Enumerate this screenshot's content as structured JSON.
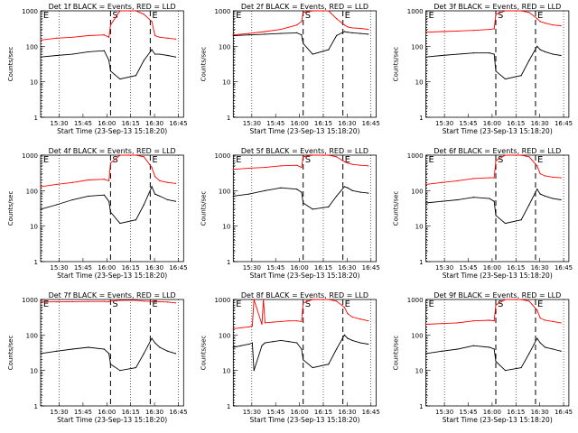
{
  "panels_meta": {
    "xlabel": "Start Time (23-Sep-13 15:18:20)",
    "ylabel": "Counts/sec",
    "xticks": [
      "15:30",
      "15:45",
      "16:00",
      "16:15",
      "16:30",
      "16:45"
    ],
    "yticks": [
      "1",
      "10",
      "100",
      "1000"
    ],
    "marker_labels": [
      "E",
      "S",
      "E"
    ]
  },
  "colors": {
    "events": "#000000",
    "lld": "#ff0000",
    "axes": "#000000"
  },
  "chart_data": [
    {
      "type": "line",
      "title": "Det 1f BLACK = Events, RED = LLD",
      "x_minutes_from_start": [
        0,
        10,
        20,
        30,
        40,
        43,
        44,
        50,
        60,
        65,
        70,
        72,
        75,
        80,
        85
      ],
      "ylog": true,
      "ylim": [
        1,
        1000
      ],
      "series": [
        {
          "name": "Events",
          "values": [
            50,
            55,
            60,
            70,
            75,
            40,
            20,
            12,
            15,
            40,
            80,
            60,
            60,
            55,
            50
          ]
        },
        {
          "name": "LLD",
          "values": [
            150,
            170,
            180,
            200,
            210,
            180,
            400,
            1000,
            1000,
            800,
            500,
            200,
            180,
            170,
            160
          ]
        }
      ]
    },
    {
      "type": "line",
      "title": "Det 2f BLACK = Events, RED = LLD",
      "x_minutes_from_start": [
        0,
        10,
        20,
        30,
        40,
        43,
        44,
        50,
        60,
        65,
        70,
        72,
        75,
        80,
        85
      ],
      "ylog": true,
      "ylim": [
        1,
        1000
      ],
      "series": [
        {
          "name": "Events",
          "values": [
            200,
            210,
            220,
            230,
            240,
            210,
            120,
            60,
            80,
            200,
            260,
            250,
            240,
            230,
            220
          ]
        },
        {
          "name": "LLD",
          "values": [
            210,
            230,
            260,
            300,
            400,
            500,
            900,
            1000,
            1000,
            600,
            400,
            350,
            330,
            320,
            300
          ]
        }
      ]
    },
    {
      "type": "line",
      "title": "Det 3f BLACK = Events, RED = LLD",
      "x_minutes_from_start": [
        0,
        10,
        20,
        30,
        40,
        43,
        44,
        50,
        60,
        65,
        70,
        72,
        75,
        80,
        85
      ],
      "ylog": true,
      "ylim": [
        1,
        1000
      ],
      "series": [
        {
          "name": "Events",
          "values": [
            50,
            55,
            60,
            65,
            65,
            60,
            20,
            12,
            15,
            40,
            100,
            80,
            70,
            60,
            55
          ]
        },
        {
          "name": "LLD",
          "values": [
            250,
            260,
            270,
            280,
            300,
            310,
            800,
            1000,
            1000,
            900,
            600,
            500,
            450,
            400,
            380
          ]
        }
      ]
    },
    {
      "type": "line",
      "title": "Det 4f BLACK = Events, RED = LLD",
      "x_minutes_from_start": [
        0,
        10,
        20,
        30,
        40,
        43,
        44,
        50,
        60,
        65,
        70,
        72,
        75,
        80,
        85
      ],
      "ylog": true,
      "ylim": [
        1,
        1000
      ],
      "series": [
        {
          "name": "Events",
          "values": [
            30,
            40,
            55,
            70,
            75,
            50,
            25,
            12,
            15,
            40,
            130,
            80,
            70,
            55,
            50
          ]
        },
        {
          "name": "LLD",
          "values": [
            130,
            150,
            170,
            200,
            210,
            190,
            600,
            1000,
            1000,
            900,
            450,
            250,
            190,
            170,
            160
          ]
        }
      ]
    },
    {
      "type": "line",
      "title": "Det 5f BLACK = Events, RED = LLD",
      "x_minutes_from_start": [
        0,
        10,
        20,
        30,
        40,
        43,
        44,
        50,
        60,
        65,
        70,
        72,
        75,
        80,
        85
      ],
      "ylog": true,
      "ylim": [
        1,
        1000
      ],
      "series": [
        {
          "name": "Events",
          "values": [
            70,
            80,
            100,
            120,
            110,
            90,
            45,
            30,
            35,
            70,
            130,
            120,
            100,
            90,
            85
          ]
        },
        {
          "name": "LLD",
          "values": [
            400,
            430,
            450,
            500,
            520,
            450,
            900,
            1000,
            1000,
            900,
            650,
            600,
            550,
            520,
            500
          ]
        }
      ]
    },
    {
      "type": "line",
      "title": "Det 6f BLACK = Events, RED = LLD",
      "x_minutes_from_start": [
        0,
        10,
        20,
        30,
        40,
        43,
        44,
        50,
        60,
        65,
        70,
        72,
        75,
        80,
        85
      ],
      "ylog": true,
      "ylim": [
        1,
        1000
      ],
      "series": [
        {
          "name": "Events",
          "values": [
            45,
            50,
            55,
            65,
            60,
            50,
            20,
            12,
            15,
            40,
            110,
            80,
            70,
            60,
            55
          ]
        },
        {
          "name": "LLD",
          "values": [
            150,
            170,
            190,
            220,
            230,
            230,
            700,
            1000,
            1000,
            900,
            500,
            300,
            260,
            240,
            230
          ]
        }
      ]
    },
    {
      "type": "line",
      "title": "Det 7f BLACK = Events, RED = LLD",
      "x_minutes_from_start": [
        0,
        10,
        20,
        30,
        40,
        43,
        44,
        50,
        60,
        65,
        70,
        72,
        75,
        80,
        85
      ],
      "ylog": true,
      "ylim": [
        1,
        1000
      ],
      "series": [
        {
          "name": "Events",
          "values": [
            30,
            35,
            40,
            45,
            40,
            30,
            15,
            10,
            12,
            30,
            80,
            60,
            45,
            35,
            30
          ]
        },
        {
          "name": "LLD",
          "values": [
            850,
            860,
            870,
            880,
            880,
            870,
            900,
            950,
            950,
            900,
            880,
            870,
            860,
            850,
            800
          ]
        }
      ]
    },
    {
      "type": "line",
      "title": "Det 8f BLACK = Events, RED = LLD",
      "x_minutes_from_start": [
        0,
        5,
        10,
        12,
        13,
        18,
        19,
        20,
        25,
        30,
        35,
        40,
        43,
        44,
        50,
        60,
        65,
        70,
        72,
        75,
        80,
        85
      ],
      "ylog": true,
      "ylim": [
        1,
        1000
      ],
      "series": [
        {
          "name": "Events",
          "values": [
            45,
            50,
            55,
            60,
            10,
            50,
            55,
            60,
            65,
            70,
            65,
            60,
            40,
            20,
            12,
            15,
            40,
            100,
            80,
            70,
            60,
            55
          ]
        },
        {
          "name": "LLD",
          "values": [
            150,
            160,
            170,
            180,
            1000,
            200,
            1000,
            220,
            230,
            240,
            250,
            250,
            240,
            800,
            1000,
            1000,
            900,
            600,
            400,
            320,
            280,
            250
          ]
        }
      ]
    },
    {
      "type": "line",
      "title": "Det 9f BLACK = Events, RED = LLD",
      "x_minutes_from_start": [
        0,
        10,
        20,
        30,
        40,
        43,
        44,
        50,
        60,
        65,
        70,
        72,
        75,
        80,
        85
      ],
      "ylog": true,
      "ylim": [
        1,
        1000
      ],
      "series": [
        {
          "name": "Events",
          "values": [
            30,
            35,
            40,
            50,
            45,
            40,
            18,
            10,
            12,
            30,
            80,
            60,
            45,
            40,
            35
          ]
        },
        {
          "name": "LLD",
          "values": [
            200,
            210,
            220,
            250,
            260,
            250,
            700,
            1000,
            1000,
            900,
            500,
            300,
            260,
            240,
            220
          ]
        }
      ]
    }
  ]
}
